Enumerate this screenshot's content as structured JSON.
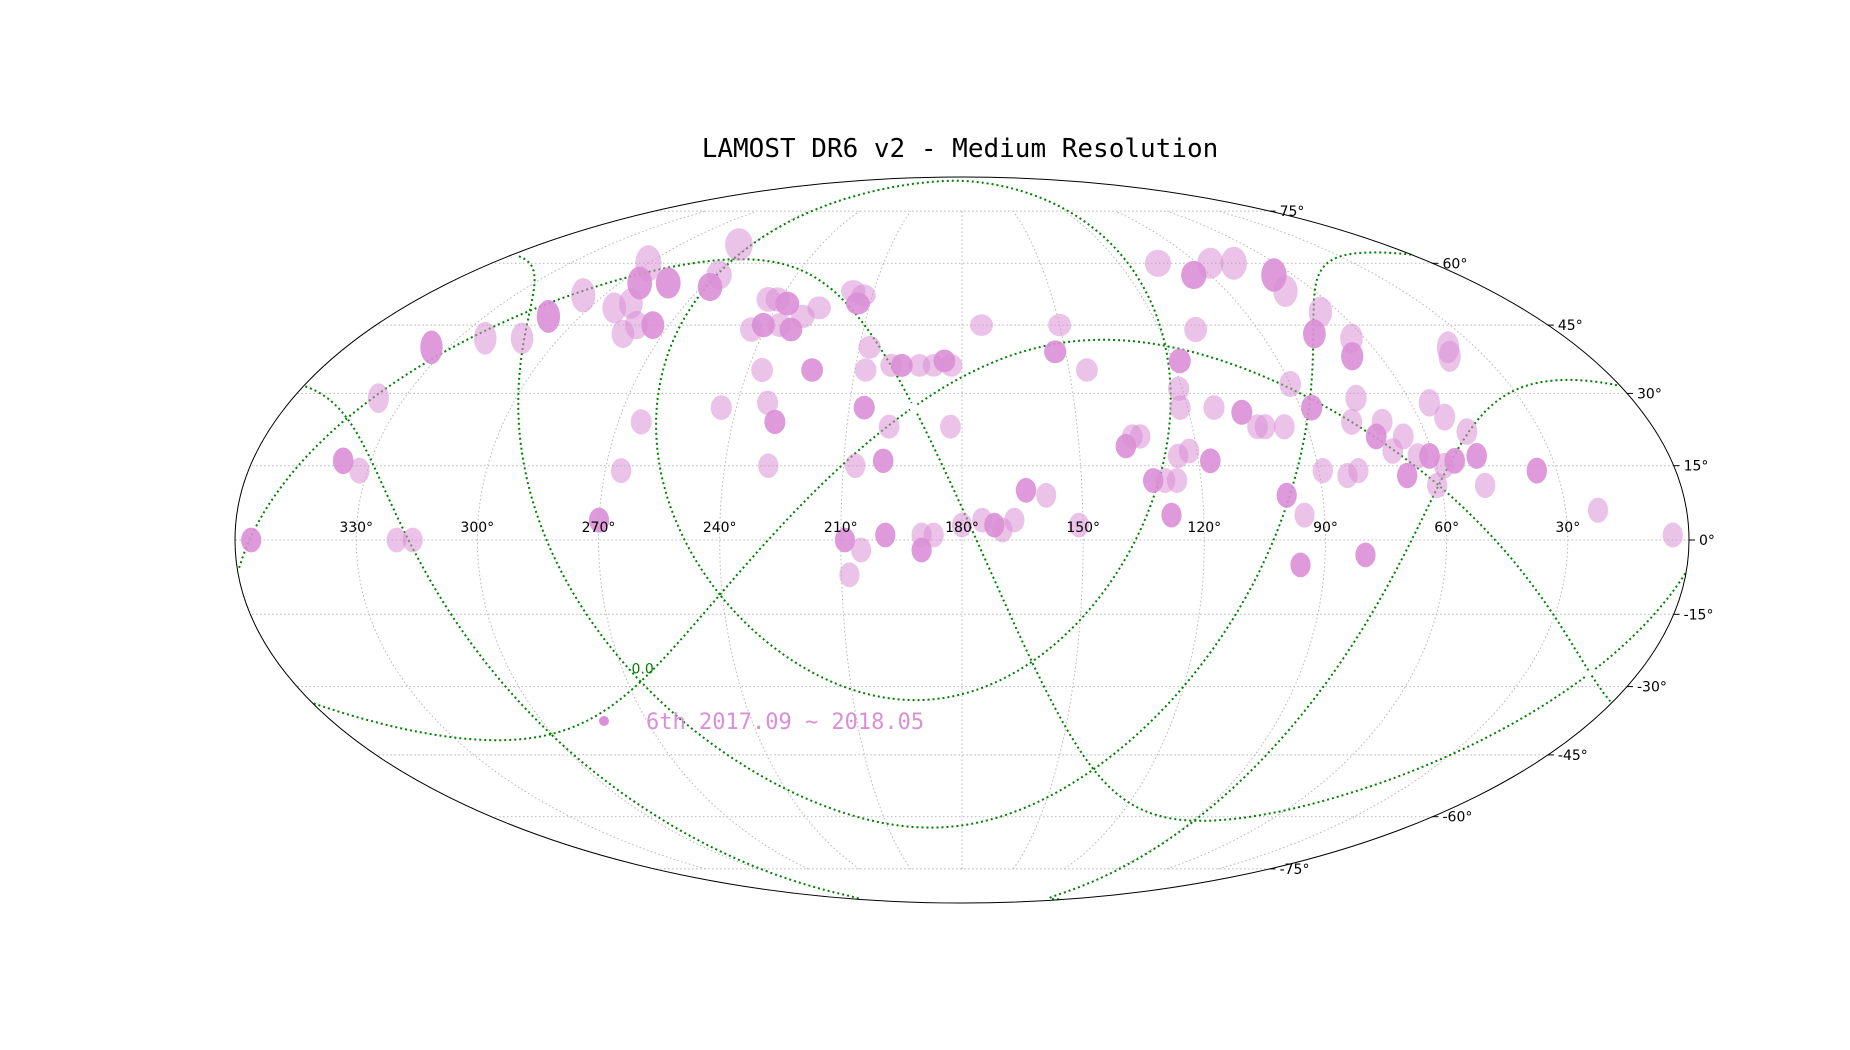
{
  "chart_data": {
    "type": "scatter",
    "projection": "mollweide",
    "title": "LAMOST DR6 v2 - Medium Resolution",
    "series": [
      {
        "name": "6th 2017.09 ~ 2018.05",
        "color": "#da8fd6",
        "marker": "field-ellipse",
        "points": [
          {
            "ra": 356,
            "dec": 0
          },
          {
            "ra": 320,
            "dec": 0
          },
          {
            "ra": 316,
            "dec": 0
          },
          {
            "ra": 337,
            "dec": 16
          },
          {
            "ra": 332,
            "dec": 14
          },
          {
            "ra": 337,
            "dec": 29
          },
          {
            "ra": 335,
            "dec": 40
          },
          {
            "ra": 322,
            "dec": 42
          },
          {
            "ra": 311,
            "dec": 42
          },
          {
            "ra": 310,
            "dec": 47
          },
          {
            "ra": 307,
            "dec": 52
          },
          {
            "ra": 300,
            "dec": 60
          },
          {
            "ra": 293,
            "dec": 55
          },
          {
            "ra": 292,
            "dec": 49
          },
          {
            "ra": 288,
            "dec": 50
          },
          {
            "ra": 283,
            "dec": 55
          },
          {
            "ra": 282,
            "dec": 43
          },
          {
            "ra": 280,
            "dec": 45
          },
          {
            "ra": 275,
            "dec": 45
          },
          {
            "ra": 275,
            "dec": 65
          },
          {
            "ra": 268,
            "dec": 57
          },
          {
            "ra": 267,
            "dec": 54
          },
          {
            "ra": 264,
            "dec": 24
          },
          {
            "ra": 266,
            "dec": 14
          },
          {
            "ra": 270,
            "dec": 4
          },
          {
            "ra": 244,
            "dec": 27
          },
          {
            "ra": 244,
            "dec": 44
          },
          {
            "ra": 241,
            "dec": 45
          },
          {
            "ra": 244,
            "dec": 51
          },
          {
            "ra": 241,
            "dec": 51
          },
          {
            "ra": 237,
            "dec": 50
          },
          {
            "ra": 236,
            "dec": 45
          },
          {
            "ra": 236,
            "dec": 35
          },
          {
            "ra": 232,
            "dec": 44
          },
          {
            "ra": 230,
            "dec": 47
          },
          {
            "ra": 232,
            "dec": 28
          },
          {
            "ra": 229,
            "dec": 24
          },
          {
            "ra": 229,
            "dec": 15
          },
          {
            "ra": 226,
            "dec": 49
          },
          {
            "ra": 222,
            "dec": 35
          },
          {
            "ra": 217,
            "dec": 53
          },
          {
            "ra": 213,
            "dec": 52
          },
          {
            "ra": 214,
            "dec": 50
          },
          {
            "ra": 207,
            "dec": 40
          },
          {
            "ra": 207,
            "dec": 35
          },
          {
            "ra": 206,
            "dec": 27
          },
          {
            "ra": 207,
            "dec": 15
          },
          {
            "ra": 200,
            "dec": 36
          },
          {
            "ra": 197,
            "dec": 36
          },
          {
            "ra": 192,
            "dec": 36
          },
          {
            "ra": 188,
            "dec": 36
          },
          {
            "ra": 185,
            "dec": 37
          },
          {
            "ra": 183,
            "dec": 36
          },
          {
            "ra": 199,
            "dec": 23
          },
          {
            "ra": 200,
            "dec": 16
          },
          {
            "ra": 183,
            "dec": 23
          },
          {
            "ra": 174,
            "dec": 45
          },
          {
            "ra": 153,
            "dec": 39
          },
          {
            "ra": 150,
            "dec": 45
          },
          {
            "ra": 145,
            "dec": 35
          },
          {
            "ra": 209,
            "dec": 0
          },
          {
            "ra": 205,
            "dec": -2
          },
          {
            "ra": 208,
            "dec": -7
          },
          {
            "ra": 199,
            "dec": 1
          },
          {
            "ra": 190,
            "dec": 1
          },
          {
            "ra": 187,
            "dec": 1
          },
          {
            "ra": 190,
            "dec": -2
          },
          {
            "ra": 180,
            "dec": 3
          },
          {
            "ra": 175,
            "dec": 4
          },
          {
            "ra": 172,
            "dec": 3
          },
          {
            "ra": 170,
            "dec": 2
          },
          {
            "ra": 167,
            "dec": 4
          },
          {
            "ra": 164,
            "dec": 10
          },
          {
            "ra": 159,
            "dec": 9
          },
          {
            "ra": 151,
            "dec": 3
          },
          {
            "ra": 138,
            "dec": 19
          },
          {
            "ra": 136,
            "dec": 21
          },
          {
            "ra": 134,
            "dec": 21
          },
          {
            "ra": 132,
            "dec": 12
          },
          {
            "ra": 129,
            "dec": 12
          },
          {
            "ra": 126,
            "dec": 12
          },
          {
            "ra": 128,
            "dec": 5
          },
          {
            "ra": 125,
            "dec": 17
          },
          {
            "ra": 122,
            "dec": 18
          },
          {
            "ra": 117,
            "dec": 16
          },
          {
            "ra": 122,
            "dec": 27
          },
          {
            "ra": 121,
            "dec": 31
          },
          {
            "ra": 118,
            "dec": 37
          },
          {
            "ra": 113,
            "dec": 27
          },
          {
            "ra": 109,
            "dec": 44
          },
          {
            "ra": 106,
            "dec": 26
          },
          {
            "ra": 103,
            "dec": 23
          },
          {
            "ra": 101,
            "dec": 23
          },
          {
            "ra": 99,
            "dec": 9
          },
          {
            "ra": 96,
            "dec": 23
          },
          {
            "ra": 95,
            "dec": 5
          },
          {
            "ra": 96,
            "dec": -5
          },
          {
            "ra": 89,
            "dec": 14
          },
          {
            "ra": 90,
            "dec": 32
          },
          {
            "ra": 87,
            "dec": 27
          },
          {
            "ra": 83,
            "dec": 13
          },
          {
            "ra": 80,
            "dec": 14
          },
          {
            "ra": 80,
            "dec": -3
          },
          {
            "ra": 78,
            "dec": 24
          },
          {
            "ra": 74,
            "dec": 29
          },
          {
            "ra": 73,
            "dec": 21
          },
          {
            "ra": 70,
            "dec": 24
          },
          {
            "ra": 66,
            "dec": 21
          },
          {
            "ra": 68,
            "dec": 13
          },
          {
            "ra": 70,
            "dec": 18
          },
          {
            "ra": 64,
            "dec": 17
          },
          {
            "ra": 61,
            "dec": 17
          },
          {
            "ra": 58,
            "dec": 15
          },
          {
            "ra": 61,
            "dec": 11
          },
          {
            "ra": 55,
            "dec": 16
          },
          {
            "ra": 55,
            "dec": 28
          },
          {
            "ra": 53,
            "dec": 25
          },
          {
            "ra": 49,
            "dec": 17
          },
          {
            "ra": 49,
            "dec": 22
          },
          {
            "ra": 49,
            "dec": 11
          },
          {
            "ra": 35,
            "dec": 14
          },
          {
            "ra": 22,
            "dec": 6
          },
          {
            "ra": 4,
            "dec": 1
          },
          {
            "ra": 74,
            "dec": 43
          },
          {
            "ra": 66,
            "dec": 48
          },
          {
            "ra": 70,
            "dec": 53
          },
          {
            "ra": 67,
            "dec": 57
          },
          {
            "ra": 76,
            "dec": 60
          },
          {
            "ra": 85,
            "dec": 60
          },
          {
            "ra": 96,
            "dec": 57
          },
          {
            "ra": 105,
            "dec": 60
          },
          {
            "ra": 64,
            "dec": 42
          },
          {
            "ra": 68,
            "dec": 38
          },
          {
            "ra": 40,
            "dec": 38
          },
          {
            "ra": 38,
            "dec": 40
          }
        ]
      }
    ],
    "x_ticks": [
      "330°",
      "300°",
      "270°",
      "240°",
      "210°",
      "180°",
      "150°",
      "120°",
      "90°",
      "60°",
      "30°"
    ],
    "y_ticks": [
      "75°",
      "60°",
      "45°",
      "30°",
      "15°",
      "0°",
      "-15°",
      "-30°",
      "-45°",
      "-60°",
      "-75°"
    ],
    "grid": true,
    "galactic_grid": {
      "color": "#008000",
      "style": "dotted",
      "label": "0.0"
    },
    "legend": {
      "placement": "lower-left",
      "label": "6th 2017.09 ~ 2018.05",
      "color": "#da8fd6"
    }
  }
}
